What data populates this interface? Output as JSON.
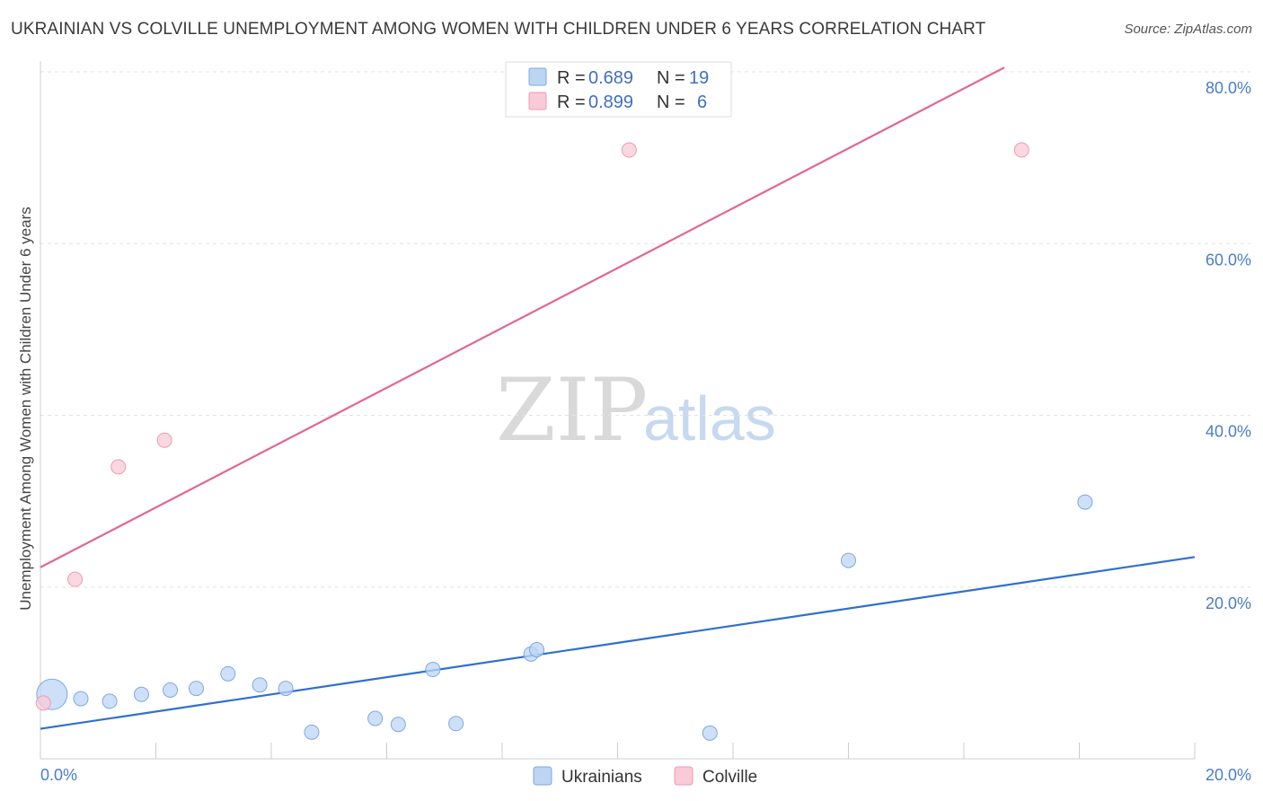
{
  "title": "UKRAINIAN VS COLVILLE UNEMPLOYMENT AMONG WOMEN WITH CHILDREN UNDER 6 YEARS CORRELATION CHART",
  "source": "Source: ZipAtlas.com",
  "watermark": {
    "zip": "ZIP",
    "atlas": "atlas"
  },
  "colors": {
    "blue_fill": "#bcd5f5",
    "blue_stroke": "#7fa8e0",
    "blue_line": "#2f6fd0",
    "pink_fill": "#f9cad8",
    "pink_stroke": "#ec9ab3",
    "pink_line": "#e3678f"
  },
  "legend": {
    "rows": [
      {
        "r_label": "R = ",
        "r_value": "0.689",
        "n_label": "N = ",
        "n_value": "19",
        "series": "blue"
      },
      {
        "r_label": "R = ",
        "r_value": "0.899",
        "n_label": "N = ",
        "n_value": "6",
        "series": "pink"
      }
    ]
  },
  "chart_data": {
    "type": "scatter",
    "title": "UKRAINIAN VS COLVILLE UNEMPLOYMENT AMONG WOMEN WITH CHILDREN UNDER 6 YEARS CORRELATION CHART",
    "xlabel": "",
    "ylabel": "Unemployment Among Women with Children Under 6 years",
    "xlim": [
      0,
      20
    ],
    "ylim": [
      0,
      80
    ],
    "x_tick_labels": [
      "0.0%",
      "20.0%"
    ],
    "y_tick_labels": [
      "20.0%",
      "40.0%",
      "60.0%",
      "80.0%"
    ],
    "y_ticks": [
      20,
      40,
      60,
      80
    ],
    "series": [
      {
        "name": "Ukrainians",
        "color": "blue",
        "points": [
          {
            "x": 0.2,
            "y": 7.5,
            "size": "large"
          },
          {
            "x": 0.7,
            "y": 7.0
          },
          {
            "x": 1.2,
            "y": 6.7
          },
          {
            "x": 1.75,
            "y": 7.5
          },
          {
            "x": 2.25,
            "y": 8.0
          },
          {
            "x": 2.7,
            "y": 8.2
          },
          {
            "x": 3.25,
            "y": 9.9
          },
          {
            "x": 3.8,
            "y": 8.6
          },
          {
            "x": 4.25,
            "y": 8.2
          },
          {
            "x": 4.7,
            "y": 3.1
          },
          {
            "x": 5.8,
            "y": 4.7
          },
          {
            "x": 6.2,
            "y": 4.0
          },
          {
            "x": 6.8,
            "y": 10.4
          },
          {
            "x": 7.2,
            "y": 4.1
          },
          {
            "x": 8.5,
            "y": 12.2
          },
          {
            "x": 8.6,
            "y": 12.7
          },
          {
            "x": 11.6,
            "y": 3.0
          },
          {
            "x": 14.0,
            "y": 23.1
          },
          {
            "x": 18.1,
            "y": 29.9
          }
        ],
        "trend": {
          "x": [
            0,
            20
          ],
          "y": [
            3.5,
            23.5
          ]
        }
      },
      {
        "name": "Colville",
        "color": "pink",
        "points": [
          {
            "x": 0.05,
            "y": 6.5
          },
          {
            "x": 0.6,
            "y": 20.9
          },
          {
            "x": 1.35,
            "y": 34.0
          },
          {
            "x": 2.15,
            "y": 37.1
          },
          {
            "x": 10.2,
            "y": 70.9
          },
          {
            "x": 17.0,
            "y": 70.9
          }
        ],
        "trend": {
          "x": [
            0,
            16.7
          ],
          "y": [
            22.3,
            80.5
          ]
        }
      }
    ],
    "legend_entries": [
      "Ukrainians",
      "Colville"
    ],
    "legend_position": "bottom",
    "grid": true
  }
}
